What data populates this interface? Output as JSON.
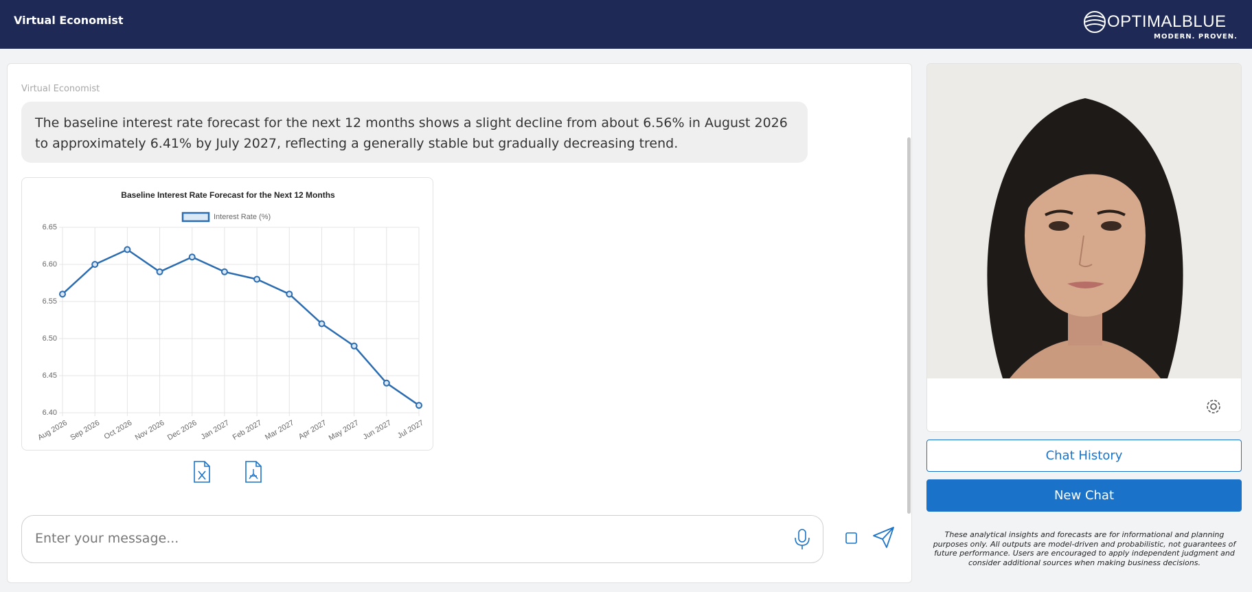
{
  "header": {
    "title": "Virtual Economist",
    "logo": {
      "name": "OPTIMALBLUE",
      "tagline": "MODERN. PROVEN."
    }
  },
  "chat": {
    "sender": "Virtual Economist",
    "message": "The baseline interest rate forecast for the next 12 months shows a slight decline from about 6.56% in August 2026 to approximately 6.41% by July 2027, reflecting a generally stable but gradually decreasing trend."
  },
  "chart_data": {
    "type": "line",
    "title": "Baseline Interest Rate Forecast for the Next 12 Months",
    "categories": [
      "Aug 2026",
      "Sep 2026",
      "Oct 2026",
      "Nov 2026",
      "Dec 2026",
      "Jan 2027",
      "Feb 2027",
      "Mar 2027",
      "Apr 2027",
      "May 2027",
      "Jun 2027",
      "Jul 2027"
    ],
    "series": [
      {
        "name": "Interest Rate (%)",
        "color": "#2b6cb0",
        "values": [
          6.56,
          6.6,
          6.62,
          6.59,
          6.61,
          6.59,
          6.58,
          6.56,
          6.52,
          6.49,
          6.44,
          6.41
        ]
      }
    ],
    "ylim": [
      6.4,
      6.65
    ],
    "yticks": [
      {
        "value": 6.4,
        "label": "6.40"
      },
      6.45,
      {
        "value": 6.5,
        "label": "6.50"
      },
      6.55,
      {
        "value": 6.6,
        "label": "6.60"
      },
      6.65
    ],
    "grid": true,
    "legend": "top"
  },
  "input": {
    "placeholder": "Enter your message..."
  },
  "buttons": {
    "chat_history": "Chat History",
    "new_chat": "New Chat"
  },
  "disclaimer": "These analytical insights and forecasts are for informational and planning purposes only. All outputs are model-driven and probabilistic, not guarantees of future performance. Users are encouraged to apply independent judgment and consider additional sources when making business decisions."
}
